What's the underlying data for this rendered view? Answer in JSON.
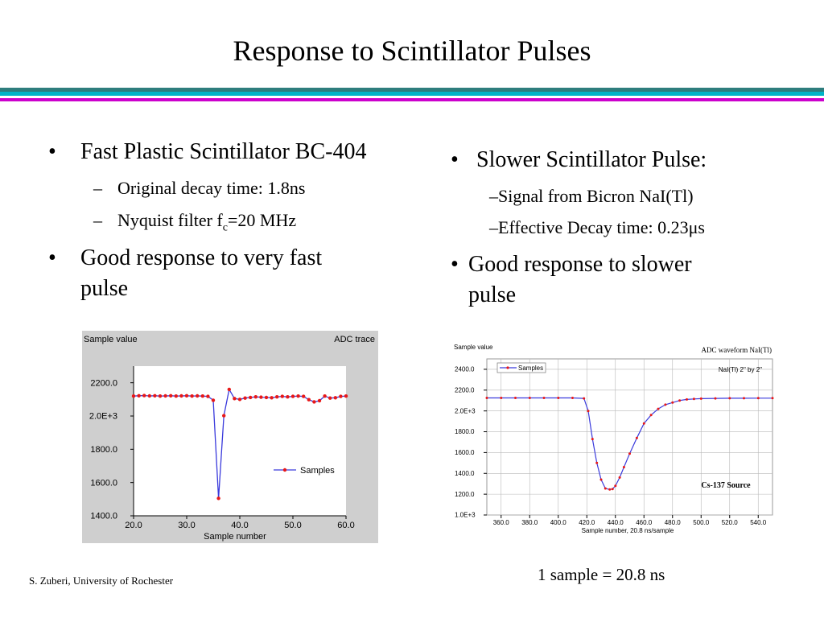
{
  "slide": {
    "title": "Response to Scintillator Pulses",
    "colors": {
      "rule_top": "#2e7d7d",
      "rule_mid": "#00b4c8",
      "rule_bottom": "#cc00cc"
    },
    "left": {
      "bullets": [
        {
          "text": "Fast Plastic Scintillator BC-404",
          "subs": [
            {
              "text": "Original decay time: 1.8ns"
            },
            {
              "pre": "Nyquist filter f",
              "sub": "c",
              "post": "=20 MHz"
            }
          ]
        },
        {
          "text": "Good response to very fast pulse",
          "line1": "Good response to very fast",
          "line2": "pulse"
        }
      ]
    },
    "right": {
      "bullets": [
        {
          "text": "Slower Scintillator Pulse:",
          "subs": [
            {
              "text": "–Signal from Bicron NaI(Tl)"
            },
            {
              "text": "–Effective Decay time: 0.23μs"
            }
          ]
        },
        {
          "line1": "Good response to slower",
          "line2": "pulse"
        }
      ]
    },
    "bullet_glyph": "•",
    "dash_glyph": "–",
    "footer": "S. Zuberi, University of Rochester",
    "sample_note": "1 sample = 20.8 ns"
  },
  "chart_data": [
    {
      "type": "line",
      "title": "ADC trace",
      "ylabel": "Sample value",
      "xlabel": "Sample number",
      "xlim": [
        20,
        60
      ],
      "ylim": [
        1400,
        2300
      ],
      "x_ticks": [
        "20.0",
        "30.0",
        "40.0",
        "50.0",
        "60.0"
      ],
      "y_ticks": [
        "1400.0",
        "1600.0",
        "1800.0",
        "2.0E+3",
        "2200.0"
      ],
      "y_tick_values": [
        1400,
        1600,
        1800,
        2000,
        2200
      ],
      "legend": "right-middle",
      "grid": false,
      "series": [
        {
          "name": "Samples",
          "color": "#3a3adc",
          "marker_color": "#e81818",
          "x": [
            20,
            21,
            22,
            23,
            24,
            25,
            26,
            27,
            28,
            29,
            30,
            31,
            32,
            33,
            34,
            35,
            36,
            37,
            38,
            39,
            40,
            41,
            42,
            43,
            44,
            45,
            46,
            47,
            48,
            49,
            50,
            51,
            52,
            53,
            54,
            55,
            56,
            57,
            58,
            59,
            60
          ],
          "y": [
            2120,
            2122,
            2123,
            2121,
            2122,
            2120,
            2121,
            2122,
            2120,
            2121,
            2122,
            2120,
            2121,
            2120,
            2118,
            2095,
            1505,
            2002,
            2160,
            2105,
            2100,
            2108,
            2112,
            2115,
            2113,
            2112,
            2110,
            2115,
            2118,
            2115,
            2118,
            2120,
            2118,
            2098,
            2085,
            2092,
            2120,
            2108,
            2110,
            2118,
            2120
          ]
        }
      ]
    },
    {
      "type": "line",
      "title": "ADC waveform NaI(Tl)",
      "subtitle": "NaI(Tl) 2\" by 2\"",
      "annotation": "Cs-137 Source",
      "ylabel": "Sample value",
      "xlabel": "Sample number, 20.8 ns/sample",
      "xlim": [
        350,
        550
      ],
      "ylim": [
        1000,
        2500
      ],
      "x_ticks": [
        "360.0",
        "380.0",
        "400.0",
        "420.0",
        "440.0",
        "460.0",
        "480.0",
        "500.0",
        "520.0",
        "540.0"
      ],
      "y_ticks": [
        "1.0E+3",
        "1200.0",
        "1400.0",
        "1600.0",
        "1800.0",
        "2.0E+3",
        "2200.0",
        "2400.0"
      ],
      "y_tick_values": [
        1000,
        1200,
        1400,
        1600,
        1800,
        2000,
        2200,
        2400
      ],
      "legend": "top-left",
      "grid": true,
      "series": [
        {
          "name": "Samples",
          "color": "#3a3adc",
          "marker_color": "#e81818",
          "x": [
            350,
            360,
            370,
            380,
            390,
            400,
            410,
            418,
            421,
            424,
            427,
            430,
            433,
            436,
            438,
            440,
            443,
            446,
            450,
            455,
            460,
            465,
            470,
            475,
            480,
            485,
            490,
            495,
            500,
            510,
            520,
            530,
            540,
            550
          ],
          "y": [
            2125,
            2125,
            2125,
            2125,
            2125,
            2125,
            2125,
            2120,
            2000,
            1730,
            1500,
            1340,
            1255,
            1245,
            1250,
            1280,
            1360,
            1460,
            1590,
            1740,
            1880,
            1960,
            2020,
            2060,
            2080,
            2100,
            2110,
            2115,
            2118,
            2120,
            2122,
            2122,
            2123,
            2123
          ]
        }
      ]
    }
  ]
}
